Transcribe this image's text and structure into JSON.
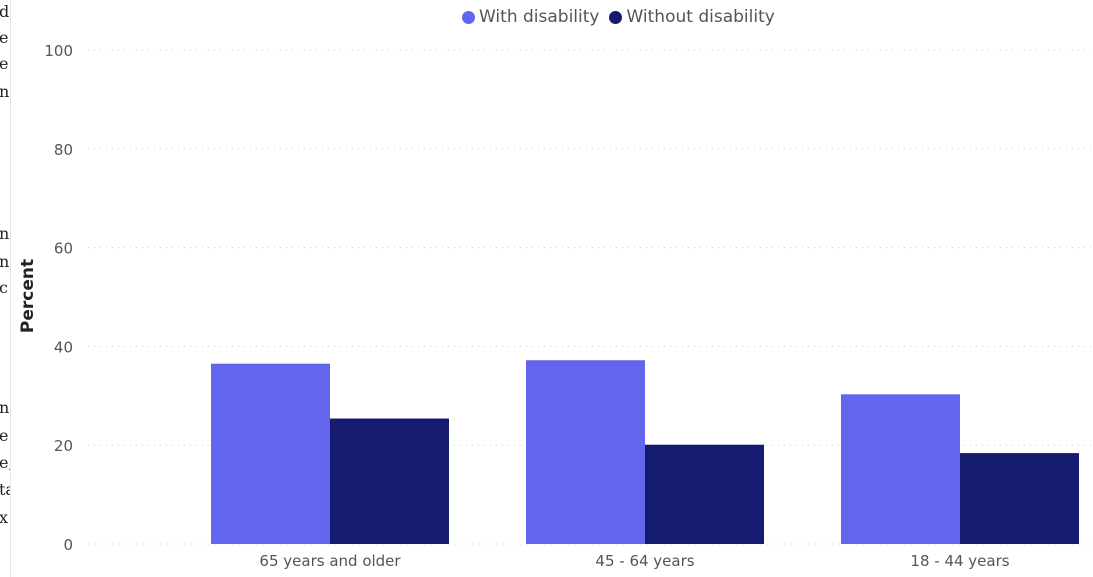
{
  "left_text_fragments": [
    "d",
    "e",
    "e",
    "nc",
    "n",
    "ns",
    "c",
    "n",
    "e",
    "e,",
    "ta",
    "x"
  ],
  "colors": {
    "with_disability": "#6366ED",
    "without_disability": "#151B6F",
    "gridline": "#cccccc",
    "tick_text": "#555555"
  },
  "chart_data": {
    "type": "bar",
    "title": "",
    "xlabel": "",
    "ylabel": "Percent",
    "ylim": [
      0,
      100
    ],
    "yticks": [
      0,
      20,
      40,
      60,
      80,
      100
    ],
    "grid": true,
    "legend_position": "top-center",
    "categories": [
      "65 years and older",
      "45 - 64 years",
      "18 - 44 years"
    ],
    "series": [
      {
        "name": "With disability",
        "values": [
          36.5,
          37.2,
          30.3
        ]
      },
      {
        "name": "Without disability",
        "values": [
          25.4,
          20.1,
          18.4
        ]
      }
    ]
  }
}
